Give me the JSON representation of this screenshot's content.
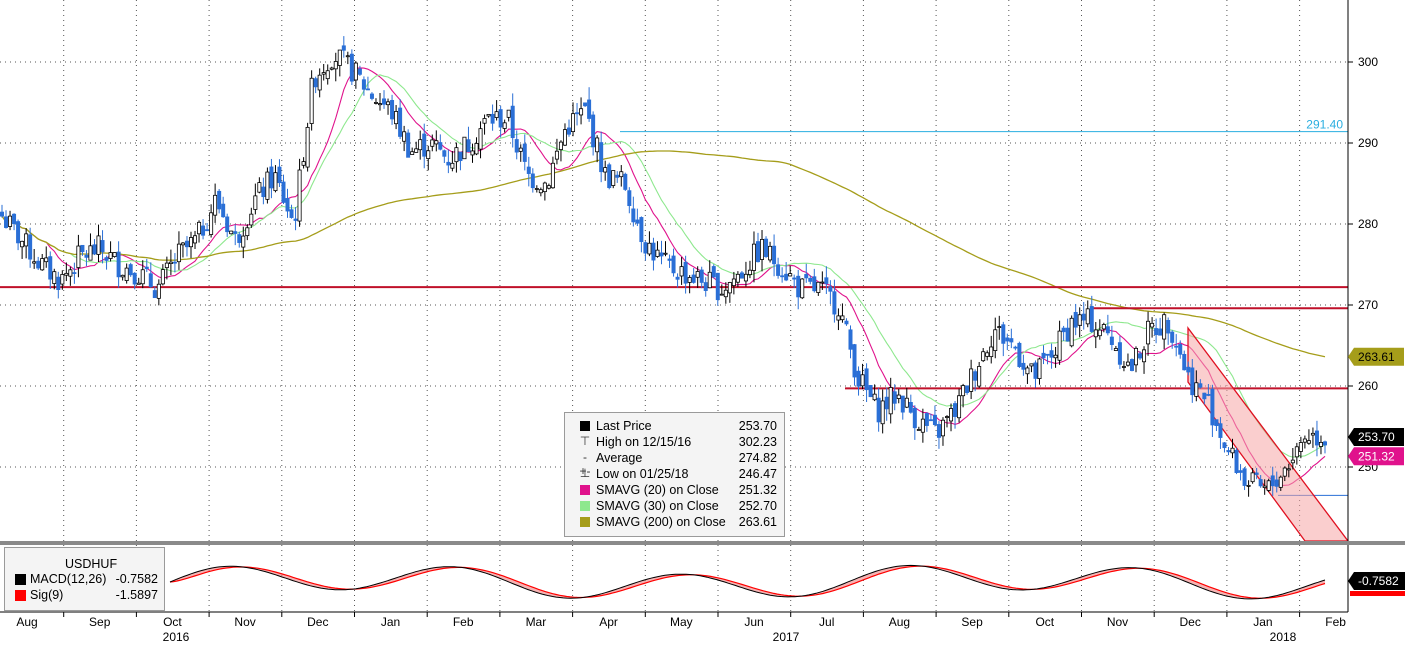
{
  "chart_data": [
    {
      "type": "candlestick",
      "symbol": "USDHUF",
      "price_axis": {
        "ticks": [
          250,
          260,
          270,
          280,
          290,
          300
        ],
        "ylim": [
          242.5,
          306
        ]
      },
      "time_axis": {
        "months": [
          "Aug",
          "Sep",
          "Oct",
          "Nov",
          "Dec",
          "Jan",
          "Feb",
          "Mar",
          "Apr",
          "May",
          "Jun",
          "Jul",
          "Aug",
          "Sep",
          "Oct",
          "Nov",
          "Dec",
          "Jan",
          "Feb"
        ],
        "years": [
          "2016",
          "2017",
          "2018"
        ]
      },
      "price_series": [
        281,
        278,
        275,
        273,
        276,
        277,
        275,
        274,
        272,
        276,
        278,
        283,
        278,
        283,
        286,
        280,
        298,
        301,
        299,
        296,
        294,
        289,
        290,
        288,
        290,
        293,
        293,
        286,
        285,
        292,
        294,
        286,
        285,
        278,
        275,
        274,
        273,
        272,
        274,
        277,
        275,
        272,
        272,
        270,
        261,
        257,
        259,
        256,
        254,
        257,
        262,
        267,
        265,
        261,
        264,
        268,
        268,
        266,
        262,
        267,
        268,
        261,
        258,
        252,
        248,
        247,
        250,
        254,
        253.7
      ],
      "price_start": "Aug 2016",
      "price_end": "Feb 2018",
      "moving_averages": [
        {
          "name": "SMAVG (20) on Close",
          "color": "#e0128c",
          "final": 251.32
        },
        {
          "name": "SMAVG (30) on Close",
          "color": "#8ee88e",
          "final": 252.7
        },
        {
          "name": "SMAVG (200) on Close",
          "color": "#a59d1a",
          "final": 263.61
        }
      ],
      "horizontal_lines": [
        {
          "value": 272.2,
          "color": "#c0102a"
        },
        {
          "value": 269.6,
          "color": "#c0102a"
        },
        {
          "value": 259.7,
          "color": "#c0102a"
        },
        {
          "value": 291.4,
          "color": "#2aaee0",
          "label": "291.40"
        },
        {
          "value": 246.5,
          "color": "#2a6fd6"
        }
      ],
      "right_tags": [
        {
          "text": "263.61",
          "value": 263.61,
          "bg": "#a59d1a",
          "fg": "#000000"
        },
        {
          "text": "253.70",
          "value": 253.7,
          "bg": "#000000",
          "fg": "#ffffff"
        },
        {
          "text": "251.32",
          "value": 251.32,
          "bg": "#e0128c",
          "fg": "#ffffff"
        }
      ],
      "legend": [
        {
          "label": "Last Price",
          "value": "253.70",
          "marker": "box",
          "color": "#000000"
        },
        {
          "label": "High on 12/15/16",
          "value": "302.23",
          "marker": "T"
        },
        {
          "label": "Average",
          "value": "274.82",
          "marker": "-+-"
        },
        {
          "label": "Low on 01/25/18",
          "value": "246.47",
          "marker": "L"
        },
        {
          "label": "SMAVG (20) on Close",
          "value": "251.32",
          "marker": "box",
          "color": "#e0128c"
        },
        {
          "label": "SMAVG (30) on Close",
          "value": "252.70",
          "marker": "box",
          "color": "#8ee88e"
        },
        {
          "label": "SMAVG (200) on Close",
          "value": "263.61",
          "marker": "box",
          "color": "#a59d1a"
        }
      ]
    },
    {
      "type": "line",
      "title": "USDHUF",
      "series": [
        {
          "name": "MACD(12,26)",
          "value": "-0.7582",
          "color": "#000000"
        },
        {
          "name": "Sig(9)",
          "value": "-1.5897",
          "color": "#ff0000"
        }
      ],
      "right_tag": {
        "text": "-0.7582",
        "bg": "#000000",
        "fg": "#ffffff"
      }
    }
  ]
}
